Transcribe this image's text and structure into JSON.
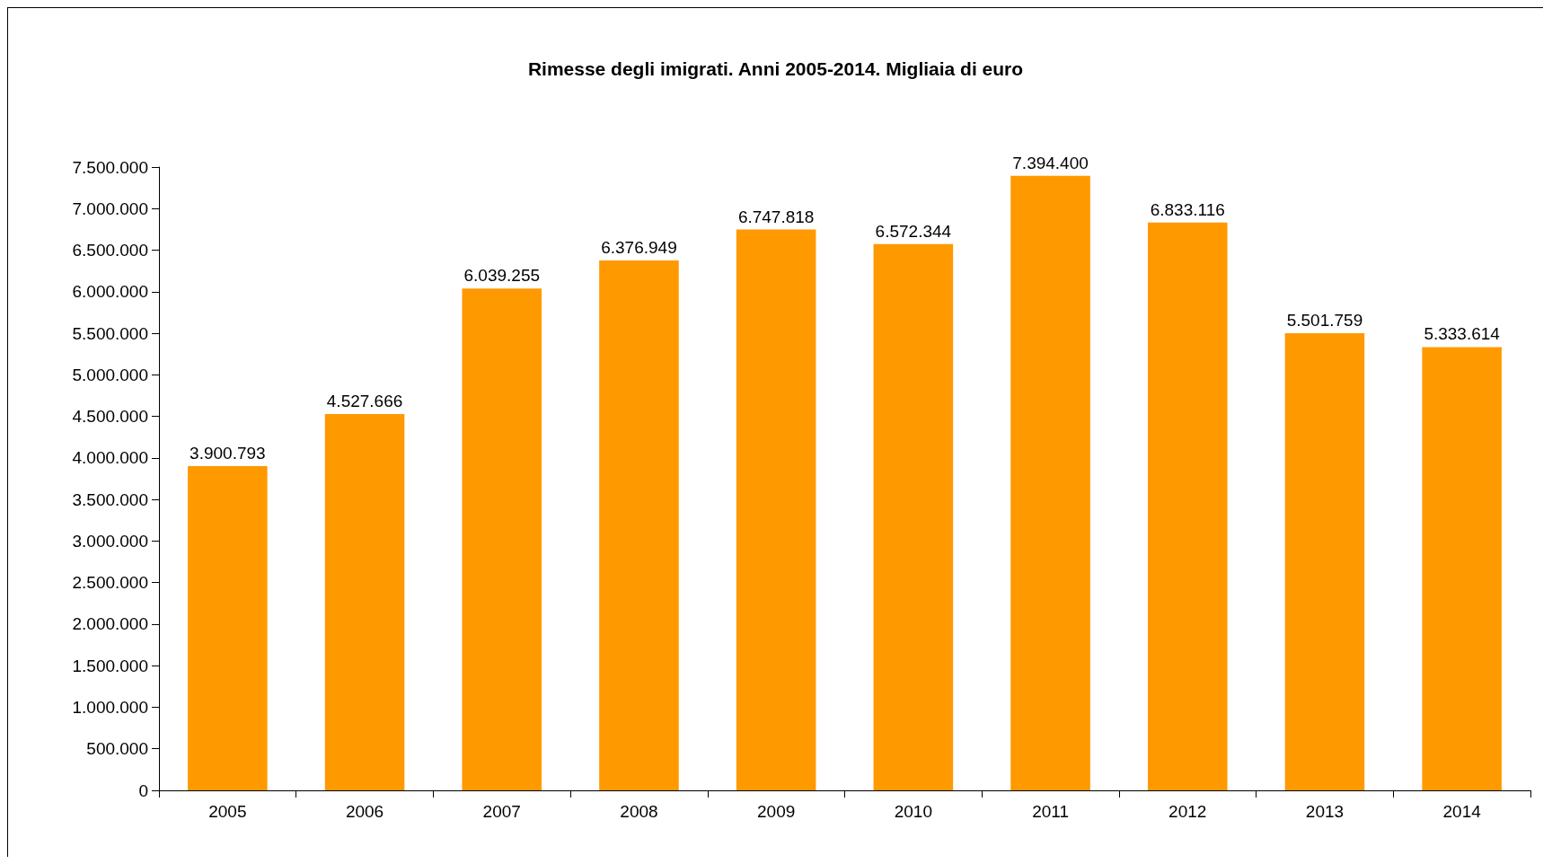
{
  "chart_data": {
    "type": "bar",
    "title": "Rimesse degli imigrati. Anni 2005-2014. Migliaia di euro",
    "categories": [
      "2005",
      "2006",
      "2007",
      "2008",
      "2009",
      "2010",
      "2011",
      "2012",
      "2013",
      "2014"
    ],
    "series": [
      {
        "color": "#ff9900",
        "values": [
          3900793,
          4527666,
          6039255,
          6376949,
          6747818,
          6572344,
          7394400,
          6833116,
          5501759,
          5333614
        ],
        "value_labels": [
          "3.900.793",
          "4.527.666",
          "6.039.255",
          "6.376.949",
          "6.747.818",
          "6.572.344",
          "7.394.400",
          "6.833.116",
          "5.501.759",
          "5.333.614"
        ]
      }
    ],
    "ylim": [
      0,
      7500000
    ],
    "yticks": [
      {
        "value": 0,
        "label": "0"
      },
      {
        "value": 500000,
        "label": "500.000"
      },
      {
        "value": 1000000,
        "label": "1.000.000"
      },
      {
        "value": 1500000,
        "label": "1.500.000"
      },
      {
        "value": 2000000,
        "label": "2.000.000"
      },
      {
        "value": 2500000,
        "label": "2.500.000"
      },
      {
        "value": 3000000,
        "label": "3.000.000"
      },
      {
        "value": 3500000,
        "label": "3.500.000"
      },
      {
        "value": 4000000,
        "label": "4.000.000"
      },
      {
        "value": 4500000,
        "label": "4.500.000"
      },
      {
        "value": 5000000,
        "label": "5.000.000"
      },
      {
        "value": 5500000,
        "label": "5.500.000"
      },
      {
        "value": 6000000,
        "label": "6.000.000"
      },
      {
        "value": 6500000,
        "label": "6.500.000"
      },
      {
        "value": 7000000,
        "label": "7.000.000"
      },
      {
        "value": 7500000,
        "label": "7.500.000"
      }
    ],
    "grid": false
  }
}
